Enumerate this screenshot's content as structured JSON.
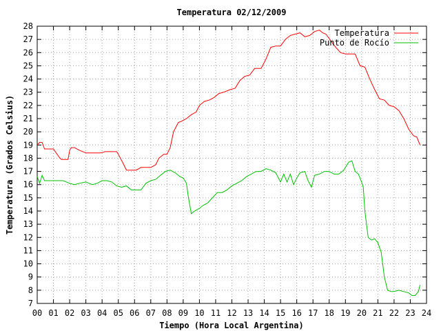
{
  "chart_data": {
    "type": "line",
    "title": "Temperatura 02/12/2009",
    "xlabel": "Tiempo (Hora Local Argentina)",
    "ylabel": "Temperatura (Grados Celsius)",
    "xlim": [
      0,
      24
    ],
    "ylim": [
      7,
      28
    ],
    "grid": true,
    "legend_position": "top-right",
    "x_ticks": [
      "00",
      "01",
      "02",
      "03",
      "04",
      "05",
      "06",
      "07",
      "08",
      "09",
      "10",
      "11",
      "12",
      "13",
      "14",
      "15",
      "16",
      "17",
      "18",
      "19",
      "20",
      "21",
      "22",
      "23",
      "24"
    ],
    "y_ticks": [
      "7",
      "8",
      "9",
      "10",
      "11",
      "12",
      "13",
      "14",
      "15",
      "16",
      "17",
      "18",
      "19",
      "20",
      "21",
      "22",
      "23",
      "24",
      "25",
      "26",
      "27",
      "28"
    ],
    "series": [
      {
        "name": "Temperatura",
        "color": "#ff0000",
        "x": [
          0.0,
          0.15,
          0.3,
          0.45,
          0.6,
          1.0,
          1.4,
          1.5,
          1.9,
          2.0,
          2.1,
          2.3,
          2.6,
          3.0,
          3.3,
          3.6,
          3.9,
          4.2,
          4.6,
          4.9,
          5.0,
          5.3,
          5.5,
          5.8,
          6.1,
          6.4,
          6.7,
          7.0,
          7.3,
          7.5,
          7.8,
          8.0,
          8.2,
          8.4,
          8.7,
          8.9,
          9.2,
          9.5,
          9.8,
          10.0,
          10.3,
          10.6,
          10.9,
          11.2,
          11.5,
          11.9,
          12.2,
          12.5,
          12.8,
          13.1,
          13.4,
          13.8,
          14.1,
          14.4,
          14.7,
          15.0,
          15.3,
          15.6,
          15.9,
          16.2,
          16.5,
          16.8,
          17.1,
          17.4,
          17.6,
          17.8,
          18.1,
          18.4,
          18.7,
          19.0,
          19.3,
          19.6,
          19.9,
          20.2,
          20.5,
          20.8,
          21.1,
          21.4,
          21.7,
          22.0,
          22.3,
          22.6,
          22.9,
          23.2,
          23.4,
          23.6
        ],
        "y": [
          19.0,
          19.2,
          19.2,
          18.7,
          18.7,
          18.7,
          18.0,
          17.9,
          17.9,
          18.6,
          18.8,
          18.8,
          18.6,
          18.4,
          18.4,
          18.4,
          18.4,
          18.5,
          18.5,
          18.5,
          18.3,
          17.6,
          17.1,
          17.1,
          17.1,
          17.3,
          17.3,
          17.3,
          17.5,
          18.0,
          18.3,
          18.3,
          18.8,
          20.0,
          20.7,
          20.8,
          21.0,
          21.3,
          21.5,
          22.0,
          22.3,
          22.4,
          22.6,
          22.9,
          23.0,
          23.2,
          23.3,
          23.9,
          24.2,
          24.3,
          24.8,
          24.8,
          25.5,
          26.4,
          26.5,
          26.5,
          27.0,
          27.3,
          27.4,
          27.5,
          27.2,
          27.3,
          27.6,
          27.7,
          27.5,
          27.4,
          26.9,
          26.4,
          26.0,
          25.9,
          25.9,
          25.9,
          25.0,
          24.9,
          24.0,
          23.2,
          22.5,
          22.4,
          22.0,
          21.9,
          21.6,
          21.0,
          20.2,
          19.7,
          19.6,
          19.0
        ]
      },
      {
        "name": "Punto de Rocío",
        "color": "#00c000",
        "x": [
          0.0,
          0.15,
          0.3,
          0.45,
          0.8,
          1.2,
          1.6,
          2.0,
          2.3,
          2.6,
          3.0,
          3.4,
          3.7,
          4.0,
          4.3,
          4.6,
          4.9,
          5.2,
          5.5,
          5.8,
          6.1,
          6.4,
          6.7,
          7.0,
          7.3,
          7.6,
          7.9,
          8.2,
          8.5,
          8.8,
          9.0,
          9.2,
          9.3,
          9.5,
          9.7,
          10.0,
          10.2,
          10.5,
          10.8,
          11.1,
          11.4,
          11.7,
          12.0,
          12.3,
          12.6,
          12.9,
          13.2,
          13.5,
          13.8,
          14.1,
          14.4,
          14.7,
          15.0,
          15.2,
          15.4,
          15.6,
          15.8,
          16.0,
          16.2,
          16.5,
          16.7,
          16.9,
          17.1,
          17.4,
          17.7,
          18.0,
          18.3,
          18.6,
          18.9,
          19.2,
          19.4,
          19.6,
          19.8,
          20.0,
          20.1,
          20.2,
          20.4,
          20.6,
          20.8,
          21.0,
          21.2,
          21.4,
          21.6,
          21.8,
          22.0,
          22.3,
          22.6,
          22.9,
          23.1,
          23.3,
          23.5,
          23.6
        ],
        "y": [
          16.6,
          16.1,
          16.7,
          16.3,
          16.3,
          16.3,
          16.3,
          16.1,
          16.0,
          16.1,
          16.2,
          16.0,
          16.1,
          16.3,
          16.3,
          16.2,
          15.9,
          15.8,
          15.9,
          15.6,
          15.6,
          15.6,
          16.1,
          16.3,
          16.4,
          16.7,
          17.0,
          17.1,
          16.9,
          16.6,
          16.5,
          16.1,
          15.2,
          13.8,
          14.0,
          14.2,
          14.4,
          14.6,
          15.0,
          15.4,
          15.4,
          15.6,
          15.9,
          16.1,
          16.3,
          16.6,
          16.8,
          17.0,
          17.0,
          17.2,
          17.1,
          16.9,
          16.2,
          16.8,
          16.2,
          16.8,
          16.0,
          16.5,
          16.9,
          17.0,
          16.3,
          15.8,
          16.7,
          16.8,
          17.0,
          17.0,
          16.8,
          16.8,
          17.1,
          17.7,
          17.8,
          17.0,
          16.8,
          16.2,
          15.8,
          14.0,
          12.0,
          11.8,
          11.9,
          11.6,
          10.9,
          9.0,
          8.0,
          7.9,
          7.9,
          8.0,
          7.9,
          7.8,
          7.6,
          7.6,
          7.9,
          8.4
        ]
      }
    ]
  }
}
